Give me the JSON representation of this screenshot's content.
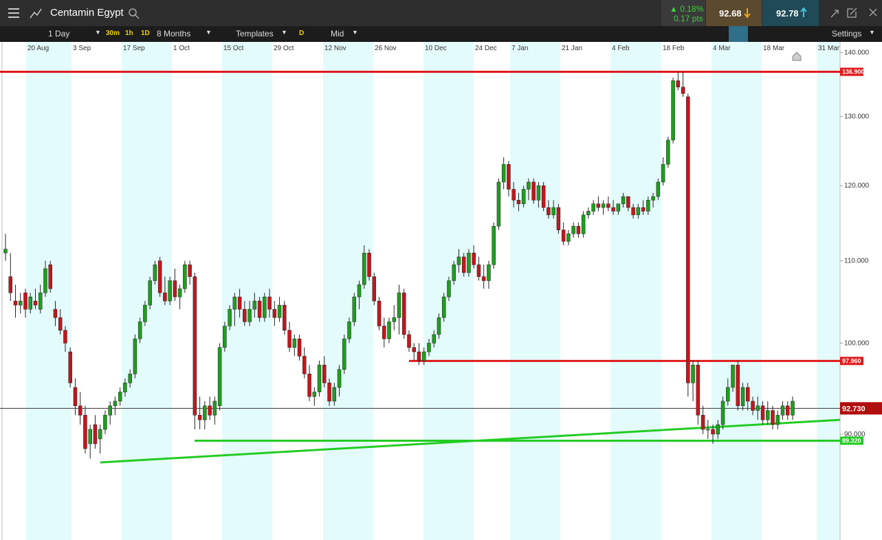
{
  "header": {
    "instrument": "Centamin Egypt",
    "change_pct": "▲ 0.18%",
    "change_pts": "0.17 pts",
    "sell": "92.68",
    "buy": "92.78"
  },
  "toolbar": {
    "interval": "1 Day",
    "quick_intervals": [
      "30m",
      "1h",
      "1D"
    ],
    "range": "8 Months",
    "templates": "Templates",
    "price_mode_short": "D",
    "price_type": "Mid",
    "settings": "Settings"
  },
  "chart_data": {
    "type": "candlestick",
    "log_scale": true,
    "ylim": [
      80,
      141.5
    ],
    "yticks": [
      {
        "value": 90,
        "label": "90.000"
      },
      {
        "value": 100,
        "label": "100.000"
      },
      {
        "value": 110,
        "label": "110.000"
      },
      {
        "value": 120,
        "label": "120.000"
      },
      {
        "value": 130,
        "label": "130.000"
      },
      {
        "value": 140,
        "label": "140.000"
      }
    ],
    "x_labels": [
      "20 Aug",
      "3 Sep",
      "17 Sep",
      "1 Oct",
      "15 Oct",
      "29 Oct",
      "12 Nov",
      "26 Nov",
      "10 Dec",
      "24 Dec",
      "7 Jan",
      "21 Jan",
      "4 Feb",
      "18 Feb",
      "4 Mar",
      "18 Mar",
      "31 Mar"
    ],
    "up_color": "#1f9e1f",
    "down_color": "#c4161c",
    "band_color": "#e4fbfb",
    "levels": [
      {
        "value": 136.9,
        "label": "136.900",
        "color": "#e01a1a",
        "line_color": "#e01a1a"
      },
      {
        "value": 97.96,
        "label": "97.960",
        "color": "#e01a1a",
        "line_color": "#e01a1a"
      },
      {
        "value": 92.73,
        "label": "92.730",
        "color": "#b00f0f",
        "line_color": "#333333"
      },
      {
        "value": 89.32,
        "label": "89.320",
        "color": "#22cc22",
        "line_color": "#22cc22"
      }
    ],
    "trendline": {
      "values": [
        87.1,
        91.5
      ],
      "color": "#22cc22"
    },
    "candles": [
      [
        111,
        113.5,
        110,
        111.5
      ],
      [
        108,
        111,
        105,
        106
      ],
      [
        105,
        107,
        103,
        104.5
      ],
      [
        104.5,
        106,
        103.5,
        105
      ],
      [
        106,
        106.5,
        103,
        104
      ],
      [
        104,
        106,
        103.5,
        105.5
      ],
      [
        105,
        106.5,
        104,
        104.5
      ],
      [
        104,
        107,
        103.5,
        106
      ],
      [
        106,
        110,
        105.5,
        109
      ],
      [
        109.5,
        110,
        106,
        106.5
      ],
      [
        104,
        105,
        102,
        103
      ],
      [
        103,
        104,
        101,
        101.5
      ],
      [
        101.5,
        102,
        99,
        100
      ],
      [
        99,
        99.5,
        95,
        95.5
      ],
      [
        95,
        96,
        92,
        93
      ],
      [
        93,
        94.5,
        91,
        92
      ],
      [
        92,
        93,
        88,
        88.5
      ],
      [
        89,
        91,
        87.5,
        90.5
      ],
      [
        91,
        92,
        88.5,
        89
      ],
      [
        89.5,
        91,
        88,
        90.5
      ],
      [
        90.5,
        92.5,
        90,
        92
      ],
      [
        92,
        93.5,
        91,
        93
      ],
      [
        93,
        94,
        92,
        93.5
      ],
      [
        93.5,
        95,
        93,
        94.5
      ],
      [
        94.5,
        96,
        94,
        95.5
      ],
      [
        95.5,
        97,
        95,
        96.5
      ],
      [
        96.5,
        101,
        96,
        100.5
      ],
      [
        100.5,
        103,
        100,
        102.5
      ],
      [
        102.5,
        105,
        102,
        104.5
      ],
      [
        104.5,
        108,
        104,
        107.5
      ],
      [
        107.5,
        110,
        107,
        109.5
      ],
      [
        110,
        110.5,
        105.5,
        106
      ],
      [
        106,
        108,
        104.5,
        105
      ],
      [
        105,
        108,
        104.5,
        107.5
      ],
      [
        107.5,
        109,
        105,
        105.5
      ],
      [
        105.5,
        107,
        104,
        106.5
      ],
      [
        106.5,
        110,
        106,
        109.5
      ],
      [
        109.5,
        110,
        107,
        108
      ],
      [
        108,
        108.5,
        90.5,
        92
      ],
      [
        92,
        94,
        90.5,
        91.5
      ],
      [
        91.5,
        93.5,
        90.5,
        93
      ],
      [
        93,
        94,
        91.5,
        92
      ],
      [
        92,
        94,
        91,
        93.5
      ],
      [
        93,
        100,
        92.5,
        99.5
      ],
      [
        99.5,
        102.5,
        99,
        102
      ],
      [
        102,
        104.5,
        101.5,
        104
      ],
      [
        104,
        106,
        102,
        105.5
      ],
      [
        105.5,
        106.5,
        103,
        104
      ],
      [
        104,
        105,
        102,
        102.5
      ],
      [
        102.5,
        105,
        102,
        104
      ],
      [
        104,
        106,
        103,
        105
      ],
      [
        105,
        105.5,
        102.5,
        103
      ],
      [
        103,
        106,
        102.5,
        105.5
      ],
      [
        105.5,
        106.5,
        103,
        104
      ],
      [
        104,
        105,
        102,
        103
      ],
      [
        103,
        105.5,
        102.5,
        104.5
      ],
      [
        104.5,
        105,
        101,
        101.5
      ],
      [
        101.5,
        102.5,
        99,
        99.5
      ],
      [
        99.5,
        101,
        98.5,
        100.5
      ],
      [
        100.5,
        101,
        98,
        98.5
      ],
      [
        98.5,
        99.5,
        96,
        96.5
      ],
      [
        96.5,
        97.5,
        93.5,
        94
      ],
      [
        94,
        95,
        93,
        94.5
      ],
      [
        94.5,
        98,
        94,
        97.5
      ],
      [
        97.5,
        98.5,
        95,
        95.5
      ],
      [
        95.5,
        96,
        93,
        93.5
      ],
      [
        93.5,
        95.5,
        93,
        95
      ],
      [
        95,
        97.5,
        94,
        97
      ],
      [
        97,
        101,
        96.5,
        100.5
      ],
      [
        100.5,
        103,
        100,
        102.5
      ],
      [
        102.5,
        106,
        102,
        105.5
      ],
      [
        105.5,
        107.5,
        104,
        107
      ],
      [
        107,
        112,
        106.5,
        111
      ],
      [
        111,
        111.5,
        107.5,
        108
      ],
      [
        108,
        108.5,
        104.5,
        105
      ],
      [
        105,
        105.5,
        101.5,
        102
      ],
      [
        102,
        103,
        99.5,
        100.5
      ],
      [
        100.5,
        103,
        100,
        102.5
      ],
      [
        102.5,
        104.5,
        101.5,
        103
      ],
      [
        103,
        107,
        101,
        106
      ],
      [
        106,
        106.5,
        100.5,
        101
      ],
      [
        101,
        101.5,
        99,
        99.5
      ],
      [
        99.5,
        100,
        98,
        99
      ],
      [
        99,
        100,
        97.5,
        98
      ],
      [
        98,
        99.5,
        97.5,
        99
      ],
      [
        99,
        100.5,
        98.5,
        100
      ],
      [
        100,
        101.5,
        99.5,
        101
      ],
      [
        101,
        103.5,
        100.5,
        103
      ],
      [
        103,
        106,
        102.5,
        105.5
      ],
      [
        105.5,
        108,
        105,
        107.5
      ],
      [
        107.5,
        110,
        107,
        109.5
      ],
      [
        109.5,
        111.5,
        108.5,
        110.5
      ],
      [
        110.5,
        111,
        108,
        108.5
      ],
      [
        108.5,
        111.5,
        108,
        111
      ],
      [
        111,
        112,
        109,
        109.5
      ],
      [
        109.5,
        110.5,
        107.5,
        108
      ],
      [
        108,
        109.5,
        106.5,
        107.5
      ],
      [
        107.5,
        110,
        106.5,
        109.5
      ],
      [
        109.5,
        115,
        109,
        114.5
      ],
      [
        114.5,
        121,
        114,
        120.5
      ],
      [
        120.5,
        124,
        119.5,
        123
      ],
      [
        123,
        123.5,
        118.5,
        119.5
      ],
      [
        119.5,
        120.5,
        117,
        118
      ],
      [
        118,
        119,
        116.5,
        117.5
      ],
      [
        117.5,
        120,
        117,
        119.5
      ],
      [
        119.5,
        121,
        118,
        120.5
      ],
      [
        120.5,
        121,
        117.5,
        118
      ],
      [
        118,
        120.5,
        117,
        120
      ],
      [
        120,
        120.5,
        116.5,
        117
      ],
      [
        117,
        118,
        115.5,
        116
      ],
      [
        116,
        118,
        115.5,
        117
      ],
      [
        117,
        117.5,
        113.5,
        114
      ],
      [
        114,
        115,
        112,
        112.5
      ],
      [
        112.5,
        114,
        112,
        113.5
      ],
      [
        113.5,
        115,
        113,
        114.5
      ],
      [
        114.5,
        115,
        113,
        113.5
      ],
      [
        113.5,
        116.5,
        113,
        116
      ],
      [
        116,
        117,
        115.5,
        116.5
      ],
      [
        116.5,
        118,
        116,
        117.5
      ],
      [
        117.5,
        118.5,
        116.5,
        117
      ],
      [
        117,
        118,
        116,
        117.5
      ],
      [
        117.5,
        118.5,
        116.5,
        117
      ],
      [
        117,
        118,
        116,
        116.5
      ],
      [
        116.5,
        117.5,
        116,
        117.5
      ],
      [
        117.5,
        119,
        117,
        118.5
      ],
      [
        118.5,
        118.5,
        116.5,
        117
      ],
      [
        117,
        117.5,
        115.5,
        116
      ],
      [
        116,
        117.5,
        115.5,
        117
      ],
      [
        117,
        118,
        116,
        116.5
      ],
      [
        116.5,
        118.5,
        116,
        118
      ],
      [
        118,
        119,
        117,
        118.5
      ],
      [
        118.5,
        121,
        118,
        120.5
      ],
      [
        120.5,
        124,
        120,
        123
      ],
      [
        123,
        127,
        122.5,
        126.5
      ],
      [
        126.5,
        136,
        126,
        135.5
      ],
      [
        135.5,
        136.9,
        134,
        134.5
      ],
      [
        134.5,
        136.9,
        133,
        133.5
      ],
      [
        133,
        133.5,
        94,
        95.5
      ],
      [
        95.5,
        98,
        93.5,
        97.5
      ],
      [
        97.5,
        98,
        91,
        92
      ],
      [
        92,
        93,
        90,
        90.5
      ],
      [
        90.5,
        91.5,
        89.5,
        90.5
      ],
      [
        90.5,
        91,
        89,
        90
      ],
      [
        90,
        91.5,
        89.5,
        91
      ],
      [
        91,
        94,
        90.5,
        93.5
      ],
      [
        93.5,
        96,
        93,
        95
      ],
      [
        95,
        97.5,
        94.5,
        97.5
      ],
      [
        97.5,
        98,
        92.5,
        93
      ],
      [
        93,
        95.5,
        92.5,
        95
      ],
      [
        95,
        95.5,
        92.5,
        93.5
      ],
      [
        93.5,
        94,
        92,
        92.5
      ],
      [
        92.5,
        94,
        91.5,
        93
      ],
      [
        93,
        93.5,
        91,
        91.5
      ],
      [
        91.5,
        93.5,
        91,
        92.5
      ],
      [
        92.5,
        93,
        90.5,
        91
      ],
      [
        91,
        92.5,
        90.5,
        92
      ],
      [
        92,
        93.5,
        91.5,
        93
      ],
      [
        93,
        93.5,
        91.5,
        92
      ],
      [
        92,
        94,
        91.5,
        93.5
      ]
    ]
  }
}
